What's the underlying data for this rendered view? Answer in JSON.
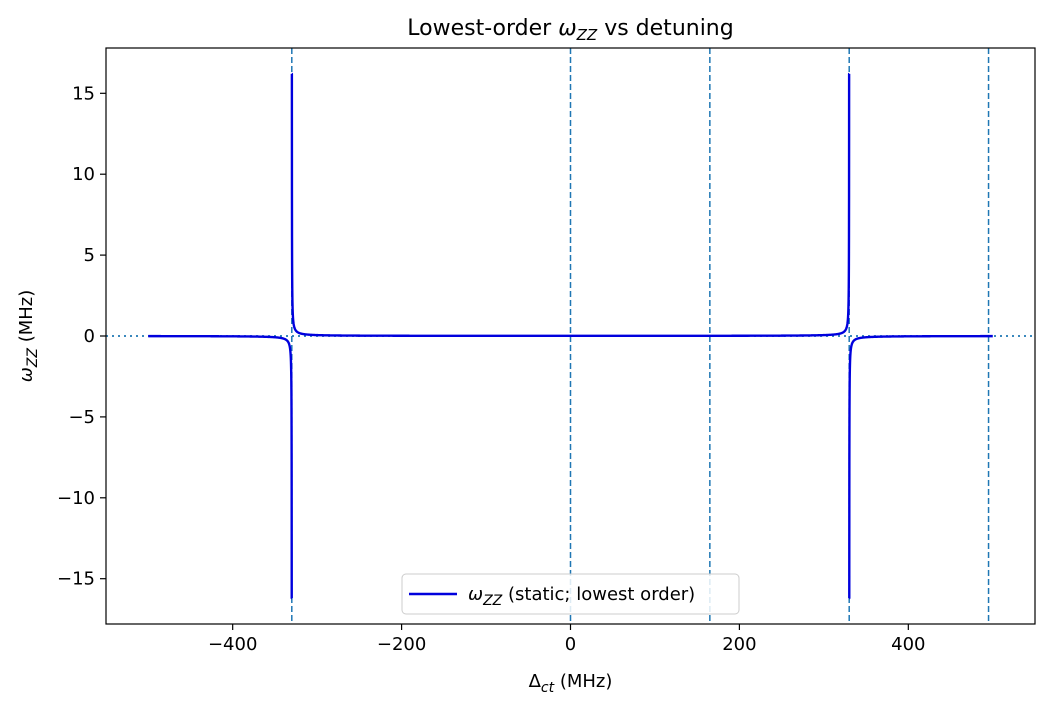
{
  "chart_data": {
    "type": "line",
    "title": {
      "main": "Lowest-order ",
      "symbol": "ω",
      "sub": "ZZ",
      "rest": " vs detuning"
    },
    "xlabel": {
      "symbol": "Δ",
      "sub": "ct",
      "rest": " (MHz)"
    },
    "ylabel": {
      "symbol": "ω",
      "sub": "ZZ",
      "rest": " (MHz)"
    },
    "xlim": [
      -550,
      550
    ],
    "ylim": [
      -17.8,
      17.8
    ],
    "x_ticks": [
      -400,
      -200,
      0,
      200,
      400
    ],
    "x_tick_labels": [
      "−400",
      "−200",
      "0",
      "200",
      "400"
    ],
    "y_ticks": [
      -15,
      -10,
      -5,
      0,
      5,
      10,
      15
    ],
    "y_tick_labels": [
      "−15",
      "−10",
      "−5",
      "0",
      "5",
      "10",
      "15"
    ],
    "grid": false,
    "legend": {
      "placement": "lower center",
      "symbol": "ω",
      "sub": "ZZ",
      "rest": " (static; lowest order)"
    },
    "series": [
      {
        "name": "ωZZ (static; lowest order)",
        "color": "#0000dd",
        "x_range": [
          -500,
          500
        ],
        "model": "A/(x+330) - A/(x-330), clipped to ±16.2",
        "A": 1.6,
        "resonances": [
          -330,
          330
        ],
        "clip": 16.2
      }
    ],
    "reference_lines": {
      "color": "#1f77b4",
      "vertical_dashed_x": [
        -330,
        0,
        165,
        330,
        495
      ],
      "horizontal_dotted_y": [
        0
      ]
    }
  }
}
